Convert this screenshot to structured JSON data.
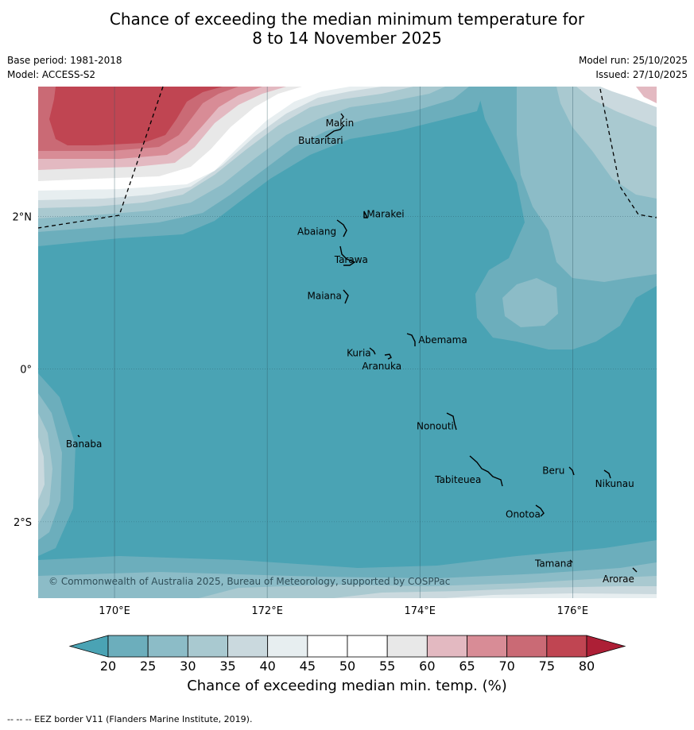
{
  "title_line1": "Chance of exceeding the median minimum temperature for",
  "title_line2": "8 to 14 November 2025",
  "meta": {
    "base_period": "Base period: 1981-2018",
    "model": "Model: ACCESS-S2",
    "model_run": "Model run: 25/10/2025",
    "issued": "Issued: 27/10/2025"
  },
  "map": {
    "lon_range": [
      169.0,
      177.1
    ],
    "lat_range": [
      -3.0,
      3.7
    ],
    "copyright": "© Commonwealth of Australia 2025, Bureau of Meteorology, supported by COSPPac",
    "x_ticks": [
      {
        "value": 170,
        "label": "170°E"
      },
      {
        "value": 172,
        "label": "172°E"
      },
      {
        "value": 174,
        "label": "174°E"
      },
      {
        "value": 176,
        "label": "176°E"
      }
    ],
    "y_ticks": [
      {
        "value": 2,
        "label": "2°N"
      },
      {
        "value": 0,
        "label": "0°"
      },
      {
        "value": -2,
        "label": "2°S"
      }
    ],
    "islands": [
      {
        "name": "Makin",
        "lon": 172.95,
        "lat": 3.22
      },
      {
        "name": "Butaritari",
        "lon": 172.7,
        "lat": 2.99
      },
      {
        "name": "Marakei",
        "lon": 173.55,
        "lat": 2.03
      },
      {
        "name": "Abaiang",
        "lon": 172.65,
        "lat": 1.8
      },
      {
        "name": "Tarawa",
        "lon": 173.1,
        "lat": 1.43
      },
      {
        "name": "Maiana",
        "lon": 172.75,
        "lat": 0.96
      },
      {
        "name": "Abemama",
        "lon": 174.3,
        "lat": 0.38
      },
      {
        "name": "Kuria",
        "lon": 173.2,
        "lat": 0.21
      },
      {
        "name": "Aranuka",
        "lon": 173.5,
        "lat": 0.04
      },
      {
        "name": "Nonouti",
        "lon": 174.2,
        "lat": -0.75
      },
      {
        "name": "Banaba",
        "lon": 169.6,
        "lat": -0.98
      },
      {
        "name": "Beru",
        "lon": 175.75,
        "lat": -1.33
      },
      {
        "name": "Nikunau",
        "lon": 176.55,
        "lat": -1.5
      },
      {
        "name": "Tabiteuea",
        "lon": 174.5,
        "lat": -1.45
      },
      {
        "name": "Onotoa",
        "lon": 175.35,
        "lat": -1.9
      },
      {
        "name": "Tamana",
        "lon": 175.75,
        "lat": -2.55
      },
      {
        "name": "Arorae",
        "lon": 176.6,
        "lat": -2.75
      }
    ]
  },
  "colorbar": {
    "title": "Chance of exceeding median min. temp. (%)",
    "ticks": [
      "20",
      "25",
      "30",
      "35",
      "40",
      "45",
      "50",
      "55",
      "60",
      "65",
      "70",
      "75",
      "80"
    ],
    "colors": [
      "#4aa3b4",
      "#6caebc",
      "#8cbcc7",
      "#a9c9d0",
      "#cad9de",
      "#e7eef0",
      "#ffffff",
      "#ffffff",
      "#e8e8e8",
      "#e3b9c1",
      "#d88c96",
      "#ca6a75",
      "#c04552",
      "#ad1f36"
    ]
  },
  "footer": "--  --  -- EEZ border V11 (Flanders Marine Institute, 2019)."
}
